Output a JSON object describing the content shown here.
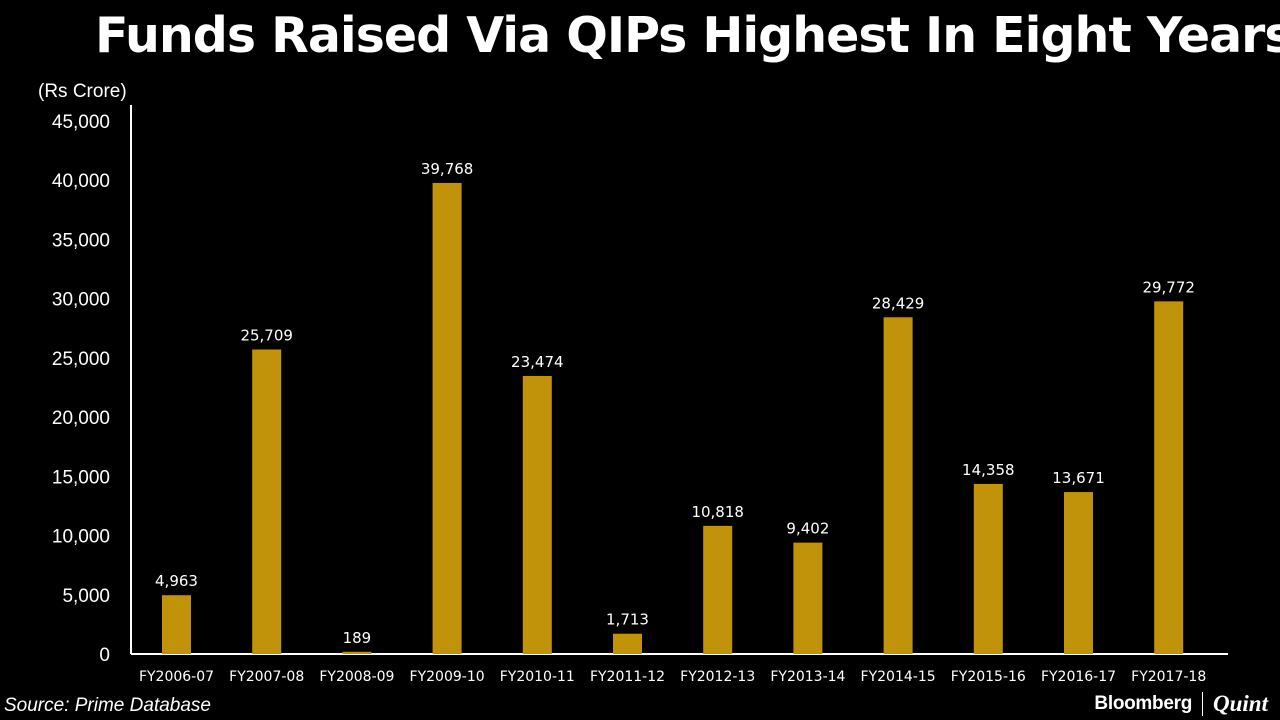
{
  "chart_data": {
    "type": "bar",
    "title": "Funds Raised Via QIPs Highest In Eight Years",
    "ylabel": "(Rs Crore)",
    "xlabel": "",
    "categories": [
      "FY2006-07",
      "FY2007-08",
      "FY2008-09",
      "FY2009-10",
      "FY2010-11",
      "FY2011-12",
      "FY2012-13",
      "FY2013-14",
      "FY2014-15",
      "FY2015-16",
      "FY2016-17",
      "FY2017-18"
    ],
    "values": [
      4963,
      25709,
      189,
      39768,
      23474,
      1713,
      10818,
      9402,
      28429,
      14358,
      13671,
      29772
    ],
    "value_labels": [
      "4,963",
      "25,709",
      "189",
      "39,768",
      "23,474",
      "1,713",
      "10,818",
      "9,402",
      "28,429",
      "14,358",
      "13,671",
      "29,772"
    ],
    "ylim": [
      0,
      45000
    ],
    "yticks": [
      0,
      5000,
      10000,
      15000,
      20000,
      25000,
      30000,
      35000,
      40000,
      45000
    ],
    "ytick_labels": [
      "0",
      "5,000",
      "10,000",
      "15,000",
      "20,000",
      "25,000",
      "30,000",
      "35,000",
      "40,000",
      "45,000"
    ],
    "grid": false,
    "legend": "none"
  },
  "footer": {
    "source": "Source: Prime Database",
    "brand_left": "Bloomberg",
    "brand_right": "Quint"
  },
  "colors": {
    "background": "#000000",
    "bar": "#C0930A",
    "axis": "#ffffff",
    "text": "#ffffff"
  }
}
